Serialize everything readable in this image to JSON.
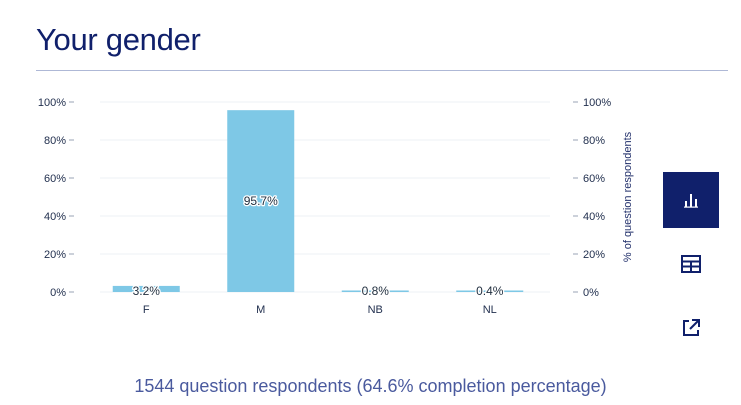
{
  "page": {
    "title": "Your gender",
    "footer": "1544 question respondents (64.6% completion percentage)"
  },
  "sidebar": {
    "buttons": [
      {
        "icon": "bar-chart-icon",
        "active": true
      },
      {
        "icon": "table-icon",
        "active": false
      },
      {
        "icon": "external-link-icon",
        "active": false
      }
    ]
  },
  "colors": {
    "bar": "#7ec8e6",
    "title": "#10206b",
    "active_button": "#10206b"
  },
  "chart_data": {
    "type": "bar",
    "categories": [
      "F",
      "M",
      "NB",
      "NL"
    ],
    "values": [
      3.2,
      95.7,
      0.8,
      0.4
    ],
    "data_labels": [
      "3.2%",
      "95.7%",
      "0.8%",
      "0.4%"
    ],
    "yticks": [
      "0%",
      "20%",
      "40%",
      "60%",
      "80%",
      "100%"
    ],
    "ylim": [
      0,
      100
    ],
    "ylabel_right": "% of question respondents",
    "grid": true
  }
}
